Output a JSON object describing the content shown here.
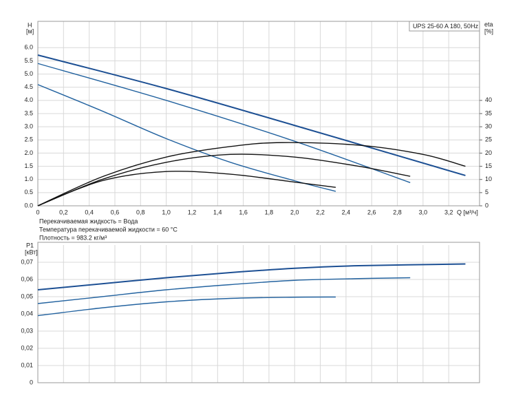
{
  "chart_data": [
    {
      "type": "line",
      "title": "UPS 25-60 A 180, 50Hz",
      "y_label": "H",
      "y_unit": "[м]",
      "y2_label": "eta",
      "y2_unit": "[%]",
      "x_label": "Q [м³/ч]",
      "notes": [
        "Перекачиваемая жидкость = Вода",
        "Температура перекачиваемой жидкости = 60 °C",
        "Плотность = 983.2 кг/м³"
      ],
      "xlim": [
        0,
        3.44
      ],
      "ylim": [
        0,
        7
      ],
      "y2lim": [
        0,
        70
      ],
      "grid": true,
      "xticks": [
        0,
        {
          "value": 0.2,
          "label": "0,2"
        },
        {
          "value": 0.4,
          "label": "0,4"
        },
        {
          "value": 0.6,
          "label": "0,6"
        },
        {
          "value": 0.8,
          "label": "0,8"
        },
        {
          "value": 1.0,
          "label": "1,0"
        },
        {
          "value": 1.2,
          "label": "1,2"
        },
        {
          "value": 1.4,
          "label": "1,4"
        },
        {
          "value": 1.6,
          "label": "1,6"
        },
        {
          "value": 1.8,
          "label": "1,8"
        },
        {
          "value": 2.0,
          "label": "2,0"
        },
        {
          "value": 2.2,
          "label": "2,2"
        },
        {
          "value": 2.4,
          "label": "2,4"
        },
        {
          "value": 2.6,
          "label": "2,6"
        },
        {
          "value": 2.8,
          "label": "2,8"
        },
        {
          "value": 3.0,
          "label": "3,0"
        },
        {
          "value": 3.2,
          "label": "3,2"
        }
      ],
      "yticks": [
        {
          "value": 0,
          "label": "0.0"
        },
        0.5,
        {
          "value": 1,
          "label": "1.0"
        },
        1.5,
        {
          "value": 2,
          "label": "2.0"
        },
        2.5,
        {
          "value": 3,
          "label": "3.0"
        },
        3.5,
        {
          "value": 4,
          "label": "4.0"
        },
        4.5,
        {
          "value": 5,
          "label": "5.0"
        },
        5.5,
        {
          "value": 6,
          "label": "6.0"
        }
      ],
      "y2ticks": [
        0,
        5,
        10,
        15,
        20,
        25,
        30,
        35,
        40
      ],
      "series": [
        {
          "color": "#1c4f93",
          "x": [
            0,
            1.0,
            2.0,
            3.33
          ],
          "values": [
            5.72,
            4.45,
            3.05,
            1.15
          ]
        },
        {
          "color": "#22629f",
          "x": [
            0,
            1.0,
            2.0,
            2.9
          ],
          "values": [
            5.4,
            4.0,
            2.45,
            0.88
          ]
        },
        {
          "color": "#22629f",
          "x": [
            0,
            0.5,
            1.0,
            1.5,
            2.0,
            2.32
          ],
          "values": [
            4.6,
            3.6,
            2.55,
            1.65,
            0.95,
            0.55
          ]
        },
        {
          "color": "#111111",
          "axis": "y2",
          "x": [
            0,
            0.5,
            1.0,
            1.5,
            1.9,
            2.5,
            3.0,
            3.33
          ],
          "values": [
            0,
            11,
            18.5,
            22.5,
            24,
            23,
            19.5,
            15
          ]
        },
        {
          "color": "#111111",
          "axis": "y2",
          "x": [
            0,
            0.5,
            1.0,
            1.5,
            2.0,
            2.5,
            2.9
          ],
          "values": [
            0,
            10,
            16.5,
            19.5,
            18.5,
            15,
            11.2
          ]
        },
        {
          "color": "#111111",
          "axis": "y2",
          "x": [
            0,
            0.5,
            1.0,
            1.5,
            2.0,
            2.32
          ],
          "values": [
            0,
            9.5,
            13,
            12,
            9,
            7
          ]
        }
      ]
    },
    {
      "type": "line",
      "y_label": "P1",
      "y_unit": "[кВт]",
      "xlim": [
        0,
        3.44
      ],
      "ylim": [
        0,
        0.08
      ],
      "grid": true,
      "xticks": [
        0,
        0.2,
        0.4,
        0.6,
        0.8,
        1.0,
        1.2,
        1.4,
        1.6,
        1.8,
        2.0,
        2.2,
        2.4,
        2.6,
        2.8,
        3.0,
        3.2
      ],
      "yticks": [
        0,
        {
          "value": 0.01,
          "label": "0,01"
        },
        {
          "value": 0.02,
          "label": "0,02"
        },
        {
          "value": 0.03,
          "label": "0,03"
        },
        {
          "value": 0.04,
          "label": "0,04"
        },
        {
          "value": 0.05,
          "label": "0,05"
        },
        {
          "value": 0.06,
          "label": "0,06"
        },
        {
          "value": 0.07,
          "label": "0,07"
        }
      ],
      "series": [
        {
          "color": "#1c4f93",
          "x": [
            0,
            0.5,
            1.0,
            1.5,
            2.0,
            2.5,
            3.33
          ],
          "values": [
            0.054,
            0.0575,
            0.061,
            0.064,
            0.0665,
            0.068,
            0.069
          ]
        },
        {
          "color": "#22629f",
          "x": [
            0,
            0.5,
            1.0,
            1.5,
            2.0,
            2.5,
            2.9
          ],
          "values": [
            0.046,
            0.05,
            0.054,
            0.057,
            0.0595,
            0.0605,
            0.061
          ]
        },
        {
          "color": "#22629f",
          "x": [
            0,
            0.5,
            1.0,
            1.5,
            2.0,
            2.32
          ],
          "values": [
            0.039,
            0.0435,
            0.047,
            0.049,
            0.0497,
            0.0498
          ]
        }
      ]
    }
  ]
}
